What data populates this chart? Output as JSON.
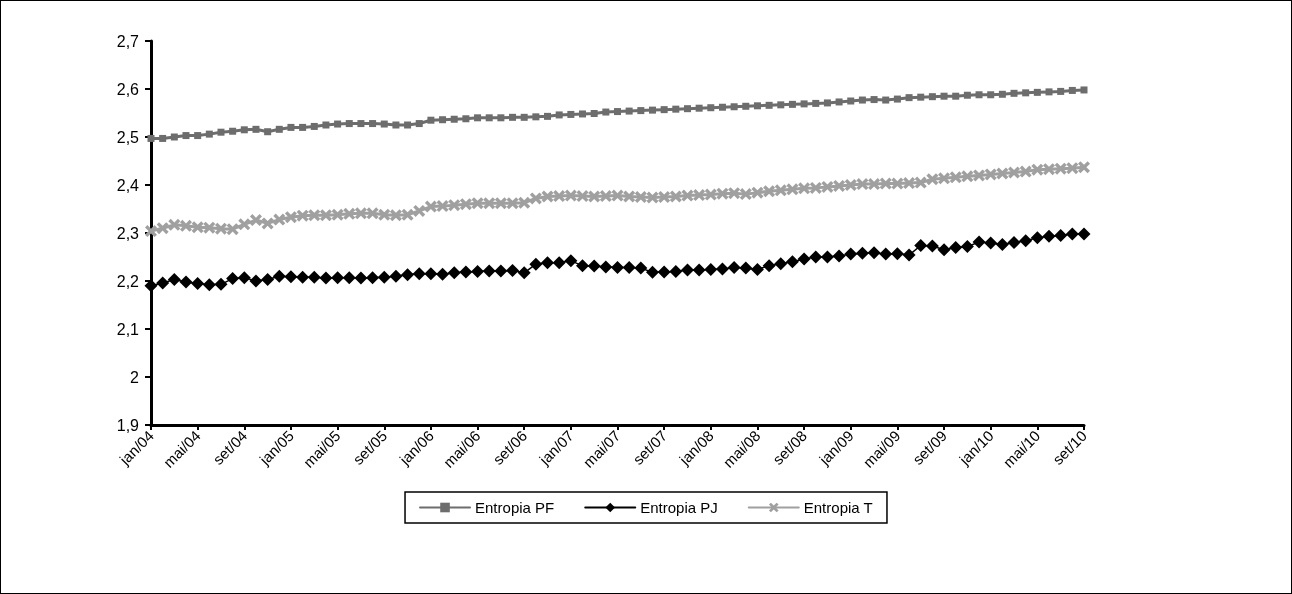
{
  "chart_data": {
    "type": "line",
    "categories": [
      "jan/04",
      null,
      null,
      null,
      "mai/04",
      null,
      null,
      null,
      "set/04",
      null,
      null,
      null,
      "jan/05",
      null,
      null,
      null,
      "mai/05",
      null,
      null,
      null,
      "set/05",
      null,
      null,
      null,
      "jan/06",
      null,
      null,
      null,
      "mai/06",
      null,
      null,
      null,
      "set/06",
      null,
      null,
      null,
      "jan/07",
      null,
      null,
      null,
      "mai/07",
      null,
      null,
      null,
      "set/07",
      null,
      null,
      null,
      "jan/08",
      null,
      null,
      null,
      "mai/08",
      null,
      null,
      null,
      "set/08",
      null,
      null,
      null,
      "jan/09",
      null,
      null,
      null,
      "mai/09",
      null,
      null,
      null,
      "set/09",
      null,
      null,
      null,
      "jan/10",
      null,
      null,
      null,
      "mai/10",
      null,
      null,
      null,
      "set/10"
    ],
    "series": [
      {
        "name": "Entropia PF",
        "color": "#6d6d6d",
        "marker": "square",
        "values": [
          2.497,
          2.497,
          2.5,
          2.503,
          2.503,
          2.506,
          2.51,
          2.512,
          2.515,
          2.516,
          2.511,
          2.516,
          2.52,
          2.52,
          2.522,
          2.525,
          2.527,
          2.528,
          2.528,
          2.528,
          2.527,
          2.525,
          2.525,
          2.528,
          2.535,
          2.536,
          2.537,
          2.538,
          2.54,
          2.54,
          2.54,
          2.541,
          2.541,
          2.542,
          2.543,
          2.546,
          2.547,
          2.548,
          2.549,
          2.552,
          2.553,
          2.554,
          2.555,
          2.556,
          2.557,
          2.558,
          2.559,
          2.56,
          2.561,
          2.562,
          2.563,
          2.564,
          2.565,
          2.566,
          2.567,
          2.568,
          2.569,
          2.57,
          2.571,
          2.573,
          2.575,
          2.577,
          2.578,
          2.577,
          2.579,
          2.582,
          2.583,
          2.584,
          2.585,
          2.585,
          2.587,
          2.588,
          2.588,
          2.589,
          2.591,
          2.592,
          2.593,
          2.594,
          2.595,
          2.597,
          2.598
        ]
      },
      {
        "name": "Entropia PJ",
        "color": "#000000",
        "marker": "diamond",
        "values": [
          2.19,
          2.196,
          2.203,
          2.198,
          2.195,
          2.192,
          2.193,
          2.205,
          2.207,
          2.2,
          2.203,
          2.21,
          2.209,
          2.208,
          2.208,
          2.206,
          2.207,
          2.207,
          2.206,
          2.207,
          2.208,
          2.21,
          2.213,
          2.215,
          2.215,
          2.214,
          2.217,
          2.219,
          2.22,
          2.221,
          2.221,
          2.222,
          2.217,
          2.235,
          2.238,
          2.238,
          2.242,
          2.232,
          2.231,
          2.229,
          2.228,
          2.228,
          2.227,
          2.218,
          2.219,
          2.22,
          2.223,
          2.223,
          2.224,
          2.225,
          2.228,
          2.227,
          2.224,
          2.232,
          2.236,
          2.24,
          2.246,
          2.25,
          2.25,
          2.252,
          2.256,
          2.258,
          2.259,
          2.256,
          2.257,
          2.254,
          2.274,
          2.273,
          2.265,
          2.27,
          2.272,
          2.281,
          2.279,
          2.276,
          2.28,
          2.284,
          2.29,
          2.293,
          2.295,
          2.298,
          2.298
        ]
      },
      {
        "name": "Entropia T",
        "color": "#a0a0a0",
        "marker": "cross",
        "values": [
          2.304,
          2.31,
          2.317,
          2.315,
          2.312,
          2.311,
          2.309,
          2.308,
          2.318,
          2.327,
          2.32,
          2.328,
          2.333,
          2.336,
          2.337,
          2.337,
          2.338,
          2.34,
          2.341,
          2.341,
          2.338,
          2.337,
          2.338,
          2.346,
          2.355,
          2.356,
          2.358,
          2.36,
          2.362,
          2.362,
          2.362,
          2.362,
          2.363,
          2.372,
          2.376,
          2.377,
          2.378,
          2.377,
          2.376,
          2.377,
          2.378,
          2.376,
          2.375,
          2.374,
          2.375,
          2.376,
          2.378,
          2.379,
          2.38,
          2.382,
          2.383,
          2.381,
          2.384,
          2.387,
          2.389,
          2.391,
          2.393,
          2.394,
          2.396,
          2.398,
          2.4,
          2.402,
          2.402,
          2.403,
          2.403,
          2.404,
          2.405,
          2.412,
          2.414,
          2.416,
          2.418,
          2.42,
          2.422,
          2.424,
          2.426,
          2.428,
          2.432,
          2.433,
          2.434,
          2.435,
          2.437
        ]
      }
    ],
    "ylim": [
      1.9,
      2.7
    ],
    "yticks": [
      {
        "value": 1.9,
        "label": "1,9"
      },
      {
        "value": 2,
        "label": "2"
      },
      {
        "value": 2.1,
        "label": "2,1"
      },
      {
        "value": 2.2,
        "label": "2,2"
      },
      {
        "value": 2.3,
        "label": "2,3"
      },
      {
        "value": 2.4,
        "label": "2,4"
      },
      {
        "value": 2.5,
        "label": "2,5"
      },
      {
        "value": 2.6,
        "label": "2,6"
      },
      {
        "value": 2.7,
        "label": "2,7"
      }
    ],
    "grid": false,
    "legend": "bottom"
  }
}
